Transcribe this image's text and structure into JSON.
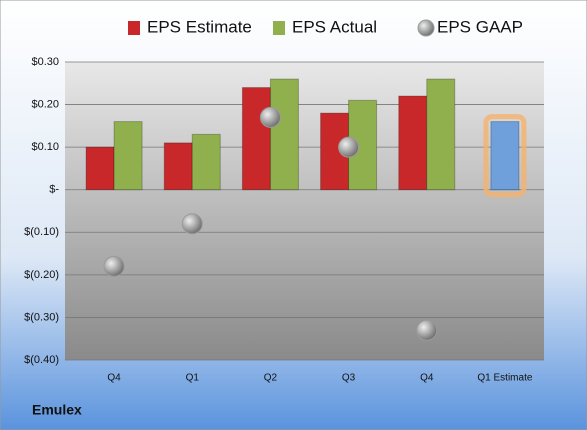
{
  "chart_data": {
    "type": "bar",
    "footer": "Emulex",
    "categories": [
      "Q4",
      "Q1",
      "Q2",
      "Q3",
      "Q4",
      "Q1 Estimate"
    ],
    "series": [
      {
        "name": "EPS Estimate",
        "color": "#c8282a",
        "marker": "bar",
        "values": [
          0.1,
          0.11,
          0.24,
          0.18,
          0.22,
          null
        ]
      },
      {
        "name": "EPS Actual",
        "color": "#8fb04c",
        "marker": "bar",
        "values": [
          0.16,
          0.13,
          0.26,
          0.21,
          0.26,
          null
        ]
      },
      {
        "name": "EPS GAAP",
        "color": "#9a9a9a",
        "marker": "circle",
        "values": [
          -0.18,
          -0.08,
          0.17,
          0.1,
          -0.33,
          null
        ]
      }
    ],
    "next_estimate": {
      "category_index": 5,
      "value": 0.16,
      "color": "#6fa0dc",
      "glow": "#f5b26b"
    },
    "ylim": [
      -0.4,
      0.3
    ],
    "yticks": [
      {
        "value": 0.3,
        "label": "$0.30"
      },
      {
        "value": 0.2,
        "label": "$0.20"
      },
      {
        "value": 0.1,
        "label": "$0.10"
      },
      {
        "value": 0,
        "label": "$-"
      },
      {
        "value": -0.1,
        "label": "$(0.10)"
      },
      {
        "value": -0.2,
        "label": "$(0.20)"
      },
      {
        "value": -0.3,
        "label": "$(0.30)"
      },
      {
        "value": -0.4,
        "label": "$(0.40)"
      }
    ],
    "grid": true
  }
}
